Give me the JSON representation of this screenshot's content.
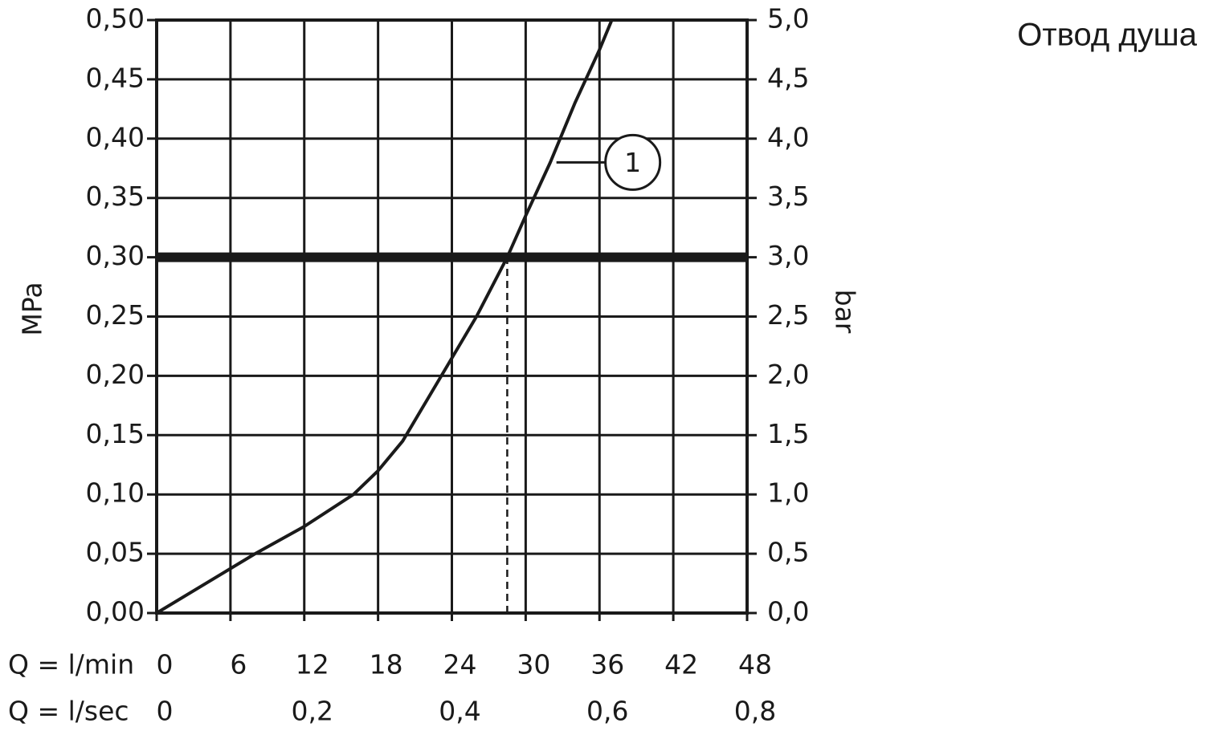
{
  "chart_data": {
    "type": "line",
    "title": "Отвод душа",
    "x": [
      0,
      4,
      8,
      12,
      16,
      18,
      20,
      22,
      24,
      26,
      28.5,
      30,
      32,
      34,
      36,
      37
    ],
    "series": [
      {
        "name": "1",
        "color": "#1a1a1a",
        "values": [
          0,
          0.025,
          0.05,
          0.073,
          0.1,
          0.12,
          0.145,
          0.18,
          0.215,
          0.25,
          0.3,
          0.335,
          0.38,
          0.43,
          0.475,
          0.5
        ]
      }
    ],
    "xlim": [
      0,
      48
    ],
    "xticks": [
      0,
      6,
      12,
      18,
      24,
      30,
      36,
      42,
      48
    ],
    "xlabel": "Q = l/min",
    "x2lim": [
      0,
      0.8
    ],
    "x2ticks": [
      0,
      {
        "value": 0.2,
        "label": "0,2"
      },
      {
        "value": 0.4,
        "label": "0,4"
      },
      {
        "value": 0.6,
        "label": "0,6"
      },
      {
        "value": 0.8,
        "label": "0,8"
      }
    ],
    "x2label": "Q = l/sec",
    "ylim": [
      0,
      0.5
    ],
    "yticks": [
      {
        "value": 0,
        "label": "0,00"
      },
      {
        "value": 0.05,
        "label": "0,05"
      },
      {
        "value": 0.1,
        "label": "0,10"
      },
      {
        "value": 0.15,
        "label": "0,15"
      },
      {
        "value": 0.2,
        "label": "0,20"
      },
      {
        "value": 0.25,
        "label": "0,25"
      },
      {
        "value": 0.3,
        "label": "0,30"
      },
      {
        "value": 0.35,
        "label": "0,35"
      },
      {
        "value": 0.4,
        "label": "0,40"
      },
      {
        "value": 0.45,
        "label": "0,45"
      },
      {
        "value": 0.5,
        "label": "0,50"
      }
    ],
    "ylabel": "MPa",
    "y2lim": [
      0,
      5
    ],
    "y2ticks": [
      {
        "value": 0,
        "label": "0,0"
      },
      {
        "value": 0.5,
        "label": "0,5"
      },
      {
        "value": 1,
        "label": "1,0"
      },
      {
        "value": 1.5,
        "label": "1,5"
      },
      {
        "value": 2,
        "label": "2,0"
      },
      {
        "value": 2.5,
        "label": "2,5"
      },
      {
        "value": 3,
        "label": "3,0"
      },
      {
        "value": 3.5,
        "label": "3,5"
      },
      {
        "value": 4,
        "label": "4,0"
      },
      {
        "value": 4.5,
        "label": "4,5"
      },
      {
        "value": 5,
        "label": "5,0"
      }
    ],
    "y2label": "bar",
    "grid": true,
    "reference_line": {
      "y": 0.3,
      "x": 28.5
    },
    "annotation": {
      "text": "1",
      "x": 32.5,
      "y": 0.38
    }
  }
}
